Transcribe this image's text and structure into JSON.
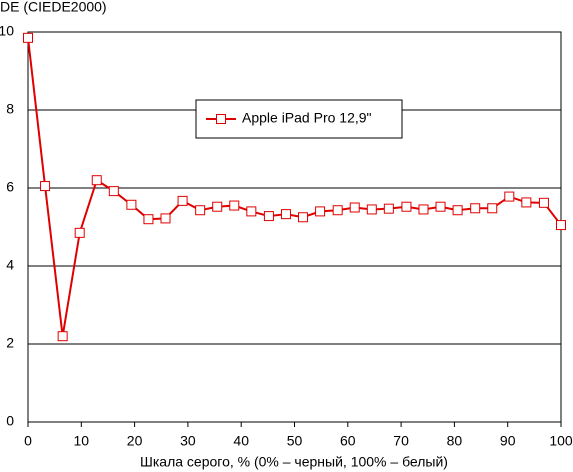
{
  "chart_data": {
    "type": "line",
    "title": "DE (CIEDE2000)",
    "x_label": "Шкала серого, % (0% – черный, 100% – белый)",
    "x": [
      0,
      3.2,
      6.5,
      9.7,
      12.9,
      16.1,
      19.4,
      22.6,
      25.8,
      29.0,
      32.3,
      35.5,
      38.7,
      41.9,
      45.2,
      48.4,
      51.6,
      54.8,
      58.1,
      61.3,
      64.5,
      67.7,
      71.0,
      74.2,
      77.4,
      80.6,
      83.9,
      87.1,
      90.3,
      93.5,
      96.8,
      100
    ],
    "series": [
      {
        "name": "Apple iPad Pro 12,9\"",
        "color": "#e00000",
        "values": [
          9.85,
          6.05,
          2.2,
          4.85,
          6.2,
          5.92,
          5.57,
          5.2,
          5.22,
          5.67,
          5.43,
          5.52,
          5.55,
          5.4,
          5.28,
          5.33,
          5.25,
          5.4,
          5.43,
          5.5,
          5.45,
          5.47,
          5.52,
          5.45,
          5.52,
          5.43,
          5.48,
          5.48,
          5.78,
          5.63,
          5.62,
          5.05
        ]
      }
    ],
    "xlim": [
      0,
      100
    ],
    "xticks": [
      0,
      10,
      20,
      30,
      40,
      50,
      60,
      70,
      80,
      90,
      100
    ],
    "ylim": [
      0,
      10
    ],
    "yticks": [
      0,
      2,
      4,
      6,
      8,
      10
    ],
    "grid": true
  }
}
